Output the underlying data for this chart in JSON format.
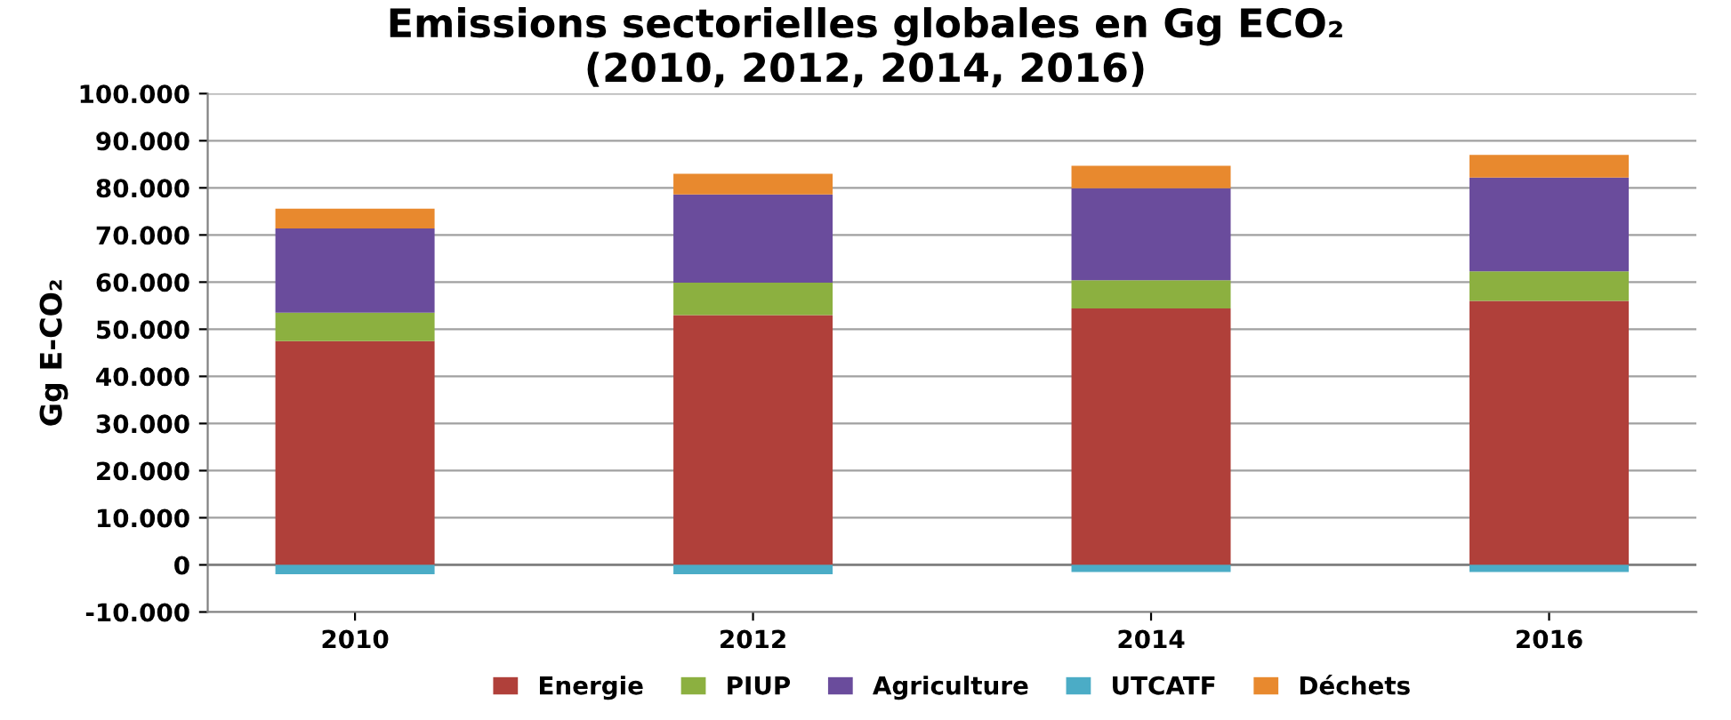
{
  "chart_data": {
    "type": "bar",
    "stacked": true,
    "title": "Emissions sectorielles globales en Gg ECO₂\n(2010, 2012, 2014, 2016)",
    "ylabel": "Gg E-CO₂",
    "categories": [
      "2010",
      "2012",
      "2014",
      "2016"
    ],
    "series": [
      {
        "name": "Energie",
        "color": "#b0403a",
        "values": [
          47500,
          53000,
          54400,
          56000
        ]
      },
      {
        "name": "PIUP",
        "color": "#8cb040",
        "values": [
          6000,
          6900,
          6000,
          6300
        ]
      },
      {
        "name": "Agriculture",
        "color": "#6a4c9c",
        "values": [
          17900,
          18700,
          19500,
          19900
        ]
      },
      {
        "name": "UTCATF",
        "color": "#4bacc6",
        "values": [
          -2000,
          -2000,
          -1500,
          -1500
        ]
      },
      {
        "name": "Déchets",
        "color": "#e8892e",
        "values": [
          4200,
          4400,
          4800,
          4800
        ]
      }
    ],
    "ylim": [
      -10000,
      100000
    ],
    "yticks": [
      {
        "value": -10000,
        "label": "-10.000"
      },
      {
        "value": 0,
        "label": "0"
      },
      {
        "value": 10000,
        "label": "10.000"
      },
      {
        "value": 20000,
        "label": "20.000"
      },
      {
        "value": 30000,
        "label": "30.000"
      },
      {
        "value": 40000,
        "label": "40.000"
      },
      {
        "value": 50000,
        "label": "50.000"
      },
      {
        "value": 60000,
        "label": "60.000"
      },
      {
        "value": 70000,
        "label": "70.000"
      },
      {
        "value": 80000,
        "label": "80.000"
      },
      {
        "value": 90000,
        "label": "90.000"
      },
      {
        "value": 100000,
        "label": "100.000"
      }
    ],
    "grid": "y",
    "legend": "bottom"
  }
}
